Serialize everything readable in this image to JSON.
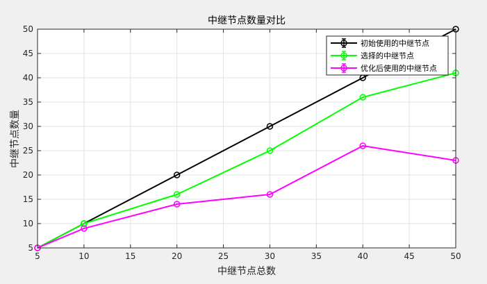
{
  "chart_data": {
    "type": "line",
    "title": "中继节点数量对比",
    "xlabel": "中继节点总数",
    "ylabel": "中继节点数量",
    "xlim": [
      5,
      50
    ],
    "ylim": [
      5,
      50
    ],
    "xticks": [
      5,
      10,
      15,
      20,
      25,
      30,
      35,
      40,
      45,
      50
    ],
    "yticks": [
      5,
      10,
      15,
      20,
      25,
      30,
      35,
      40,
      45,
      50
    ],
    "grid": true,
    "legend_position": "top-right",
    "x": [
      5,
      10,
      20,
      30,
      40,
      50
    ],
    "series": [
      {
        "name": "初始使用的中继节点",
        "color": "#000000",
        "marker": "circle",
        "values": [
          5,
          10,
          20,
          30,
          40,
          50
        ]
      },
      {
        "name": "选择的中继节点",
        "color": "#00ff00",
        "marker": "circle",
        "values": [
          5,
          10,
          16,
          25,
          36,
          41
        ]
      },
      {
        "name": "优化后使用的中继节点",
        "color": "#ff00ff",
        "marker": "circle",
        "values": [
          5,
          9,
          14,
          16,
          26,
          23
        ]
      }
    ]
  }
}
